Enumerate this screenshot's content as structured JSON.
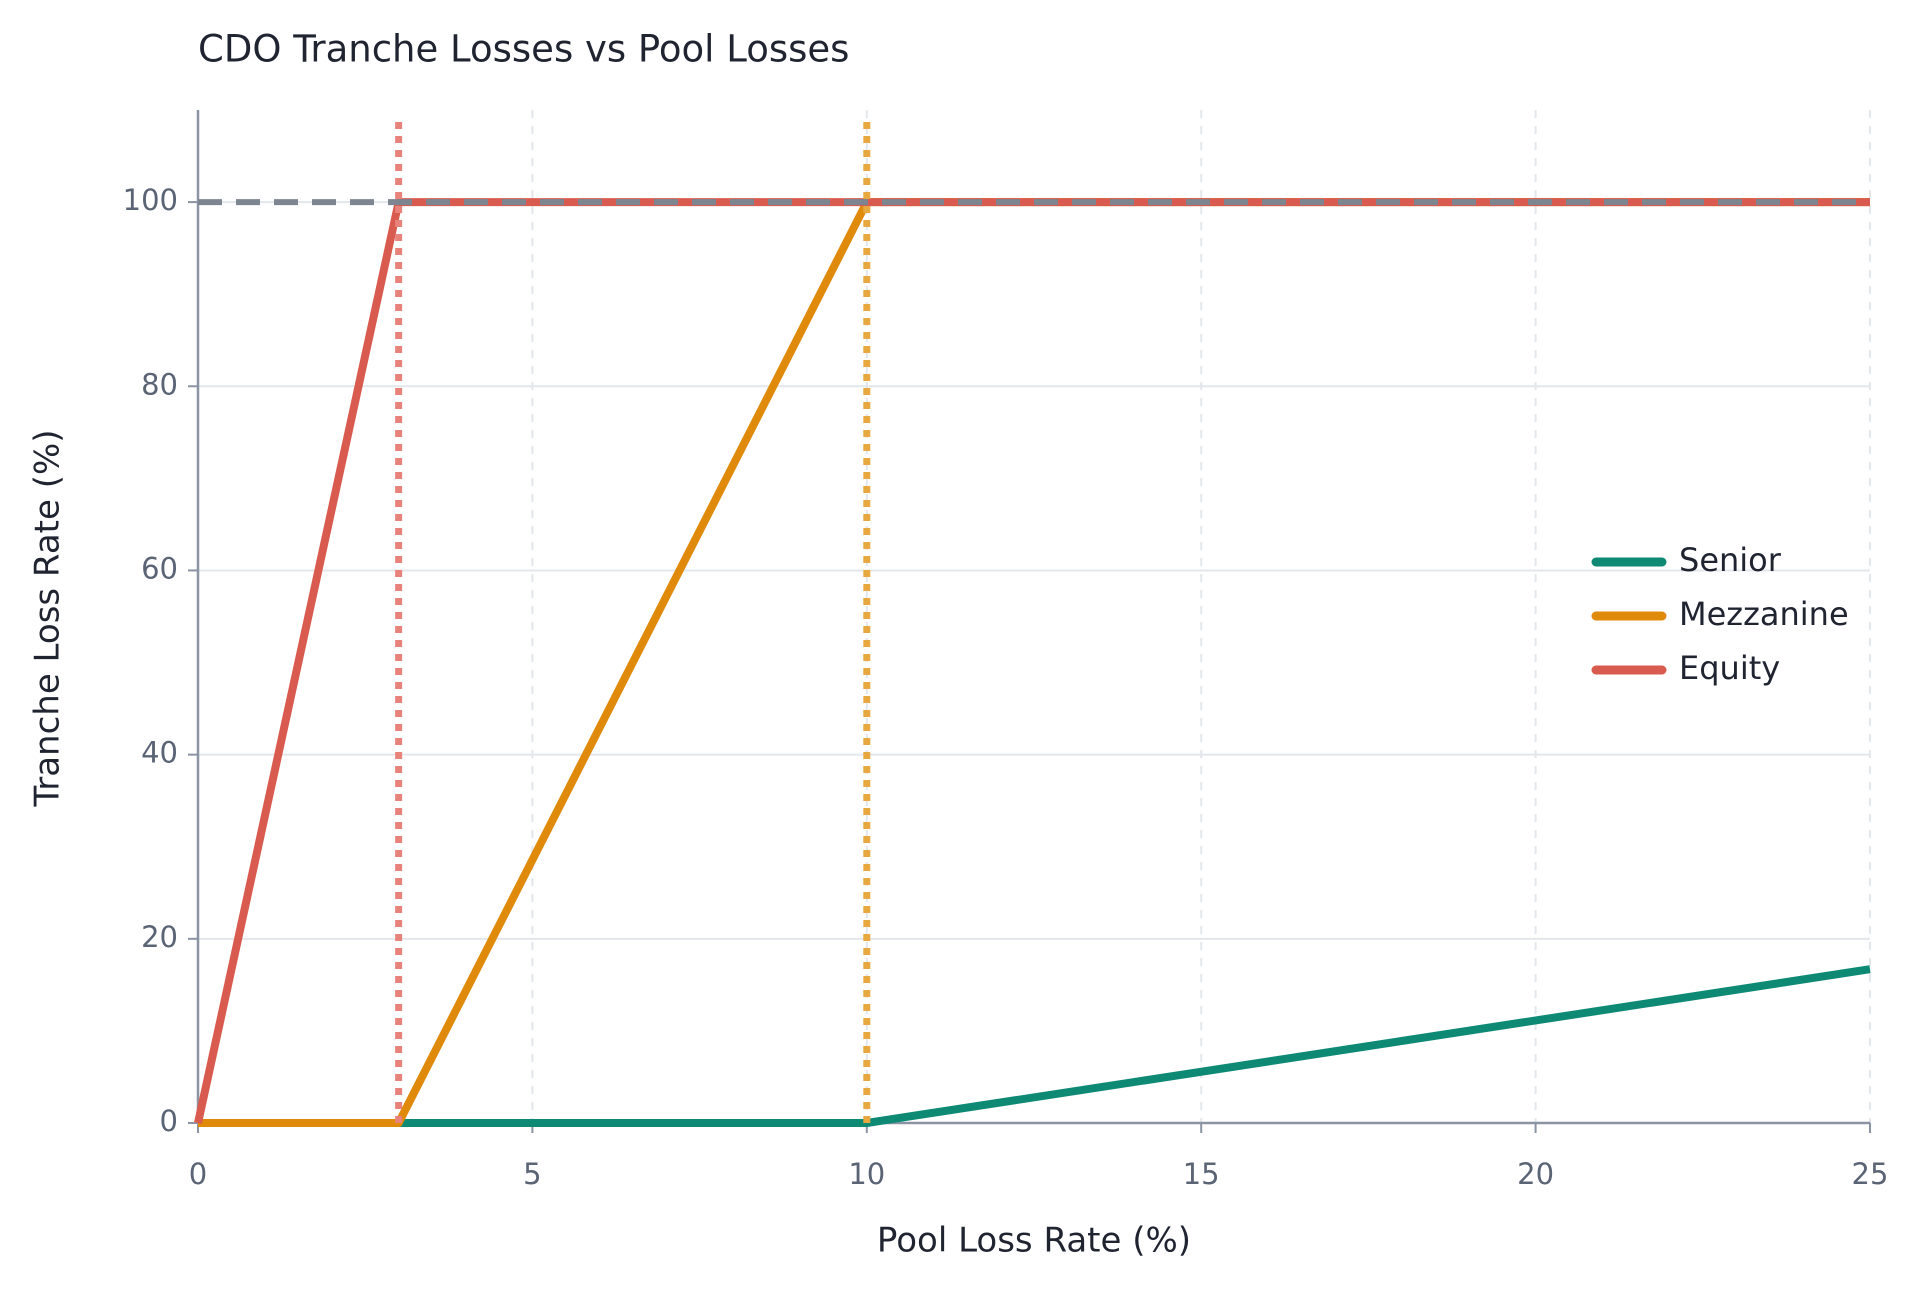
{
  "chart_data": {
    "type": "line",
    "title": "CDO Tranche Losses vs Pool Losses",
    "x_label": "Pool Loss Rate (%)",
    "y_label": "Tranche Loss Rate (%)",
    "x": [
      0,
      3,
      10,
      25
    ],
    "series": [
      {
        "name": "Senior",
        "color": "#0e8a74",
        "values": [
          0,
          0,
          0,
          16.7
        ]
      },
      {
        "name": "Mezzanine",
        "color": "#e08a0b",
        "values": [
          0,
          0,
          100,
          100
        ]
      },
      {
        "name": "Equity",
        "color": "#d95a4e",
        "values": [
          0,
          100,
          100,
          100
        ]
      }
    ],
    "vlines": [
      {
        "x": 3,
        "color": "#e8837b"
      },
      {
        "x": 10,
        "color": "#e8a840"
      }
    ],
    "hlines": [
      {
        "y": 100,
        "color": "#7d8590"
      }
    ],
    "xlim": [
      0,
      25
    ],
    "xticks": [
      0,
      5,
      10,
      15,
      20,
      25
    ],
    "ylim": [
      0,
      110
    ],
    "yticks": [
      0,
      20,
      40,
      60,
      80,
      100
    ],
    "grid": true,
    "legend": "right"
  }
}
